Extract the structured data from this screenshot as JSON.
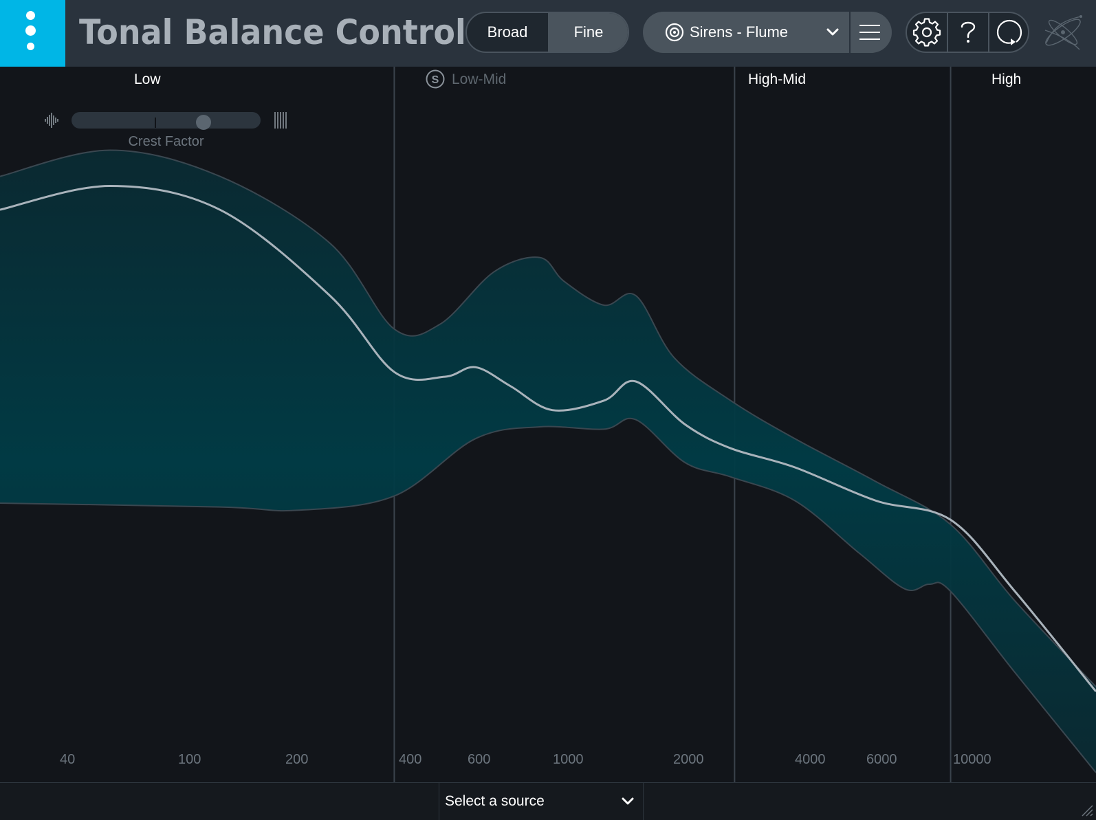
{
  "app": {
    "title": "Tonal Balance Control"
  },
  "view_toggle": {
    "options": [
      {
        "label": "Broad",
        "selected": false
      },
      {
        "label": "Fine",
        "selected": true
      }
    ]
  },
  "target": {
    "name": "Sirens - Flume",
    "icon": "target-icon"
  },
  "toolbar": {
    "icons": [
      "gear-icon",
      "help-icon",
      "refresh-icon"
    ]
  },
  "bands": [
    {
      "label": "Low",
      "active": true
    },
    {
      "label": "Low-Mid",
      "active": false,
      "solo_label": "S"
    },
    {
      "label": "High-Mid",
      "active": true
    },
    {
      "label": "High",
      "active": true
    }
  ],
  "crest_factor": {
    "label": "Crest Factor",
    "value": 0.72
  },
  "frequency_axis": {
    "ticks": [
      "40",
      "100",
      "200",
      "400",
      "600",
      "1000",
      "2000",
      "4000",
      "6000",
      "10000"
    ],
    "band_splits_hz": [
      240,
      2050,
      8000
    ]
  },
  "curve": {
    "fill_color": "#003a44",
    "line_color": "#a9b3bb",
    "edge_color": "#3a4750",
    "upper": [
      [
        20,
        0.77
      ],
      [
        40,
        0.825
      ],
      [
        80,
        0.77
      ],
      [
        160,
        0.63
      ],
      [
        240,
        0.45
      ],
      [
        320,
        0.46
      ],
      [
        450,
        0.57
      ],
      [
        600,
        0.6
      ],
      [
        700,
        0.55
      ],
      [
        900,
        0.5
      ],
      [
        1100,
        0.52
      ],
      [
        1400,
        0.39
      ],
      [
        2000,
        0.3
      ],
      [
        3000,
        0.22
      ],
      [
        5000,
        0.13
      ],
      [
        8000,
        0.04
      ],
      [
        12000,
        -0.12
      ],
      [
        20000,
        -0.3
      ]
    ],
    "middle": [
      [
        20,
        0.7
      ],
      [
        40,
        0.75
      ],
      [
        80,
        0.7
      ],
      [
        160,
        0.52
      ],
      [
        240,
        0.36
      ],
      [
        330,
        0.35
      ],
      [
        400,
        0.37
      ],
      [
        500,
        0.33
      ],
      [
        650,
        0.28
      ],
      [
        900,
        0.3
      ],
      [
        1100,
        0.34
      ],
      [
        1500,
        0.25
      ],
      [
        2000,
        0.2
      ],
      [
        3000,
        0.16
      ],
      [
        5000,
        0.09
      ],
      [
        8000,
        0.05
      ],
      [
        12000,
        -0.1
      ],
      [
        20000,
        -0.31
      ]
    ],
    "lower": [
      [
        20,
        0.085
      ],
      [
        80,
        0.077
      ],
      [
        130,
        0.07
      ],
      [
        240,
        0.1
      ],
      [
        400,
        0.22
      ],
      [
        600,
        0.245
      ],
      [
        900,
        0.24
      ],
      [
        1100,
        0.26
      ],
      [
        1500,
        0.17
      ],
      [
        2000,
        0.14
      ],
      [
        3000,
        0.09
      ],
      [
        4500,
        -0.02
      ],
      [
        6000,
        -0.095
      ],
      [
        7000,
        -0.085
      ],
      [
        8000,
        -0.1
      ],
      [
        12000,
        -0.27
      ],
      [
        20000,
        -0.48
      ]
    ]
  }
}
